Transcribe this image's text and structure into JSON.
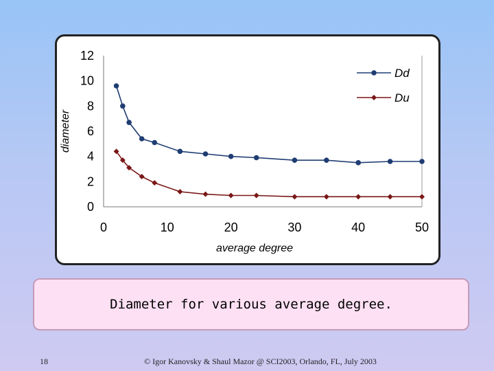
{
  "chart_data": {
    "type": "line",
    "xlabel": "average degree",
    "ylabel": "diameter",
    "xlim": [
      0,
      50
    ],
    "ylim": [
      0,
      12
    ],
    "xticks": [
      0,
      10,
      20,
      30,
      40,
      50
    ],
    "yticks": [
      0,
      2,
      4,
      6,
      8,
      10,
      12
    ],
    "legend_position": "top-right",
    "series": [
      {
        "name": "Dd",
        "color": "#1f3d73",
        "marker": "circle",
        "x": [
          2,
          3,
          4,
          6,
          8,
          12,
          16,
          20,
          24,
          30,
          35,
          40,
          45,
          50
        ],
        "values": [
          9.6,
          8.0,
          6.7,
          5.4,
          5.1,
          4.4,
          4.2,
          4.0,
          3.9,
          3.7,
          3.7,
          3.5,
          3.6,
          3.6
        ]
      },
      {
        "name": "Du",
        "color": "#7a1717",
        "marker": "diamond",
        "x": [
          2,
          3,
          4,
          6,
          8,
          12,
          16,
          20,
          24,
          30,
          35,
          40,
          45,
          50
        ],
        "values": [
          4.4,
          3.7,
          3.1,
          2.4,
          1.9,
          1.2,
          1.0,
          0.9,
          0.9,
          0.8,
          0.8,
          0.8,
          0.8,
          0.8
        ]
      }
    ]
  },
  "caption": "Diameter for various average degree.",
  "footer": {
    "slide_number": "18",
    "text": "© Igor Kanovsky & Shaul Mazor @ SCI2003, Orlando, FL, July 2003"
  }
}
